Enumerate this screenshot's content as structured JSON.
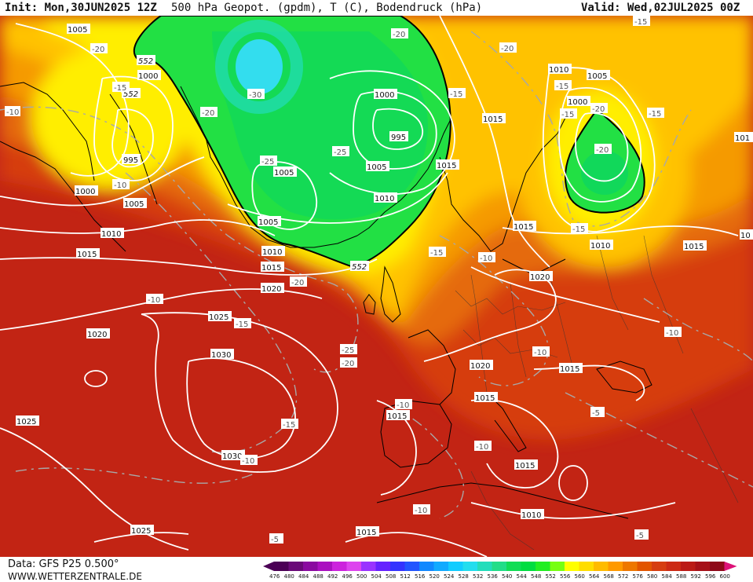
{
  "header": {
    "init": "Init: Mon,30JUN2025 12Z",
    "title": "500 hPa Geopot. (gpdm), T (C), Bodendruck (hPa)",
    "valid": "Valid: Wed,02JUL2025 00Z"
  },
  "footer": {
    "data_source": "Data: GFS P25 0.500°",
    "website": "WWW.WETTERZENTRALE.DE"
  },
  "colors": {
    "green_low": "#00dd40",
    "cyan_core": "#33ddee",
    "yellow": "#ffff00",
    "gold": "#ffcc00",
    "orange": "#ff9900",
    "dark_orange": "#ee6600",
    "red": "#dd3311",
    "dark_red": "#bb1111",
    "isobar": "#ffffff",
    "isotherm": "#aaaaaa",
    "geopotential_line": "#000000"
  },
  "colorbar": {
    "values": [
      "476",
      "480",
      "484",
      "488",
      "492",
      "496",
      "500",
      "504",
      "508",
      "512",
      "516",
      "520",
      "524",
      "528",
      "532",
      "536",
      "540",
      "544",
      "548",
      "552",
      "556",
      "560",
      "564",
      "568",
      "572",
      "576",
      "580",
      "584",
      "588",
      "592",
      "596",
      "600"
    ],
    "colors": [
      "#4b0055",
      "#6a0a78",
      "#8a0aa0",
      "#aa10c0",
      "#cc22dd",
      "#dd44ee",
      "#9933ff",
      "#6622ff",
      "#3333ff",
      "#2255ff",
      "#1188ff",
      "#11aaff",
      "#11ccff",
      "#22ddee",
      "#22ddbb",
      "#22dd88",
      "#11dd55",
      "#00dd40",
      "#22ee22",
      "#77ff11",
      "#ffff00",
      "#ffdd00",
      "#ffbb00",
      "#ff9900",
      "#ee7700",
      "#e25500",
      "#d63d10",
      "#cc2a14",
      "#bb1a16",
      "#a61018",
      "#8e0818",
      "#dd1177"
    ]
  },
  "geopotential_labels": [
    {
      "text": "552"
    },
    {
      "text": "552"
    },
    {
      "text": "552"
    }
  ],
  "pressure_labels": [
    {
      "text": "1005"
    },
    {
      "text": "1000"
    },
    {
      "text": "995"
    },
    {
      "text": "1000"
    },
    {
      "text": "1005"
    },
    {
      "text": "1010"
    },
    {
      "text": "1015"
    },
    {
      "text": "1005"
    },
    {
      "text": "1000"
    },
    {
      "text": "995"
    },
    {
      "text": "1005"
    },
    {
      "text": "1010"
    },
    {
      "text": "1005"
    },
    {
      "text": "1010"
    },
    {
      "text": "1015"
    },
    {
      "text": "1020"
    },
    {
      "text": "1025"
    },
    {
      "text": "1020"
    },
    {
      "text": "1030"
    },
    {
      "text": "1025"
    },
    {
      "text": "1030"
    },
    {
      "text": "1025"
    },
    {
      "text": "1015"
    },
    {
      "text": "1015"
    },
    {
      "text": "1015"
    },
    {
      "text": "1010"
    },
    {
      "text": "1005"
    },
    {
      "text": "1000"
    },
    {
      "text": "1015"
    },
    {
      "text": "1020"
    },
    {
      "text": "1010"
    },
    {
      "text": "1015"
    },
    {
      "text": "1015"
    },
    {
      "text": "1020"
    },
    {
      "text": "1015"
    },
    {
      "text": "1015"
    },
    {
      "text": "1015"
    },
    {
      "text": "1010"
    },
    {
      "text": "1015"
    },
    {
      "text": "1010"
    },
    {
      "text": "101"
    },
    {
      "text": "10"
    }
  ],
  "temperature_labels": [
    {
      "text": "-20"
    },
    {
      "text": "-15"
    },
    {
      "text": "-10"
    },
    {
      "text": "-30"
    },
    {
      "text": "-20"
    },
    {
      "text": "-25"
    },
    {
      "text": "-25"
    },
    {
      "text": "-10"
    },
    {
      "text": "-20"
    },
    {
      "text": "-20"
    },
    {
      "text": "-15"
    },
    {
      "text": "-15"
    },
    {
      "text": "-15"
    },
    {
      "text": "-20"
    },
    {
      "text": "-15"
    },
    {
      "text": "-15"
    },
    {
      "text": "-20"
    },
    {
      "text": "-15"
    },
    {
      "text": "-15"
    },
    {
      "text": "-10"
    },
    {
      "text": "-20"
    },
    {
      "text": "-10"
    },
    {
      "text": "-15"
    },
    {
      "text": "-25"
    },
    {
      "text": "-20"
    },
    {
      "text": "-15"
    },
    {
      "text": "-10"
    },
    {
      "text": "-10"
    },
    {
      "text": "-10"
    },
    {
      "text": "-10"
    },
    {
      "text": "-10"
    },
    {
      "text": "-5"
    },
    {
      "text": "-10"
    },
    {
      "text": "-5"
    },
    {
      "text": "-5"
    },
    {
      "text": "-10"
    },
    {
      "text": "-15"
    },
    {
      "text": "-15"
    },
    {
      "text": "-10"
    }
  ]
}
